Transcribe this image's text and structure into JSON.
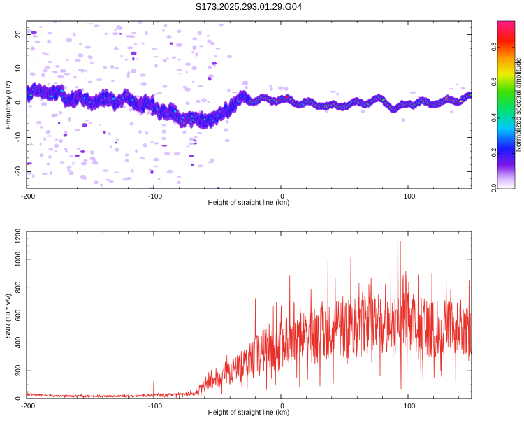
{
  "figure": {
    "title": "S173.2025.293.01.29.G04"
  },
  "chart_data": [
    {
      "type": "heatmap",
      "name": "spectrogram",
      "xlabel": "Height of straight line (km)",
      "ylabel": "Frequency (Hz)",
      "xlim": [
        -200,
        150
      ],
      "ylim": [
        -25,
        24
      ],
      "xticks": [
        -200,
        -100,
        0,
        100
      ],
      "xtick_labels": [
        "-200",
        "-100",
        "0",
        "100"
      ],
      "yticks": [
        -20,
        -10,
        0,
        10,
        20
      ],
      "ytick_labels": [
        "-20",
        "-10",
        "0",
        "10",
        "20"
      ],
      "ridge": {
        "x": [
          -200,
          -180,
          -160,
          -140,
          -120,
          -100,
          -80,
          -70,
          -60,
          -50,
          -40,
          -30,
          -20,
          0,
          20,
          40,
          60,
          80,
          90,
          100,
          120,
          140,
          150
        ],
        "frequency_hz": [
          3,
          3,
          1,
          1,
          1,
          -1,
          -4,
          -5,
          -5,
          -4,
          -1,
          1,
          1,
          1,
          0,
          -1,
          0,
          1,
          -2,
          0,
          0,
          1,
          2
        ]
      },
      "colorbar": {
        "label": "Normalized spectral amplitude",
        "range": [
          0,
          0.95
        ],
        "ticks": [
          0.0,
          0.2,
          0.4,
          0.6,
          0.8
        ],
        "tick_labels": [
          "0.0",
          "0.2",
          "0.4",
          "0.6",
          "0.8"
        ],
        "colormap": "rainbow: white, violet, blue, cyan, green, yellow, orange, red, magenta"
      }
    },
    {
      "type": "line",
      "name": "snr",
      "xlabel": "Height of straight line (km)",
      "ylabel": "SNR (10 * v/v)",
      "xlim": [
        -200,
        150
      ],
      "ylim": [
        0,
        1200
      ],
      "xticks": [
        -200,
        -100,
        0,
        100
      ],
      "xtick_labels": [
        "-200",
        "-100",
        "0",
        "100"
      ],
      "yticks": [
        0,
        200,
        400,
        600,
        800,
        1000,
        1200
      ],
      "ytick_labels": [
        "0",
        "200",
        "400",
        "600",
        "800",
        "1000",
        "1200"
      ],
      "color": "#e8302a",
      "series": [
        {
          "name": "SNR",
          "x": [
            -200,
            -175,
            -150,
            -125,
            -110,
            -100,
            -90,
            -80,
            -70,
            -65,
            -60,
            -55,
            -50,
            -45,
            -40,
            -35,
            -30,
            -25,
            -20,
            -15,
            -10,
            -5,
            0,
            5,
            10,
            15,
            20,
            25,
            30,
            35,
            40,
            45,
            50,
            55,
            60,
            65,
            70,
            75,
            80,
            85,
            90,
            95,
            100,
            105,
            110,
            115,
            120,
            125,
            130,
            135,
            140,
            145,
            150
          ],
          "baseline": [
            30,
            20,
            15,
            18,
            20,
            22,
            25,
            30,
            35,
            45,
            100,
            140,
            150,
            165,
            185,
            210,
            240,
            280,
            310,
            330,
            350,
            360,
            380,
            400,
            420,
            430,
            440,
            450,
            460,
            470,
            480,
            490,
            500,
            505,
            510,
            520,
            520,
            525,
            530,
            530,
            530,
            540,
            540,
            530,
            520,
            520,
            510,
            500,
            500,
            490,
            480,
            470,
            460
          ],
          "spread": [
            12,
            10,
            10,
            10,
            12,
            14,
            16,
            18,
            20,
            30,
            70,
            90,
            100,
            110,
            120,
            130,
            150,
            170,
            190,
            210,
            220,
            230,
            240,
            250,
            255,
            260,
            265,
            270,
            275,
            280,
            280,
            285,
            285,
            290,
            290,
            290,
            290,
            290,
            290,
            290,
            290,
            290,
            290,
            290,
            285,
            285,
            280,
            280,
            275,
            275,
            270,
            270,
            265
          ],
          "peaks": [
            {
              "x": -100,
              "y": 125
            },
            {
              "x": -20,
              "y": 720
            },
            {
              "x": 7,
              "y": 880
            },
            {
              "x": 37,
              "y": 980
            },
            {
              "x": 55,
              "y": 1010
            },
            {
              "x": 92,
              "y": 1200
            },
            {
              "x": 94,
              "y": 1130
            },
            {
              "x": 94.5,
              "y": 65
            },
            {
              "x": 108,
              "y": 890
            },
            {
              "x": 130,
              "y": 870
            },
            {
              "x": 148,
              "y": 850
            }
          ]
        }
      ]
    }
  ]
}
